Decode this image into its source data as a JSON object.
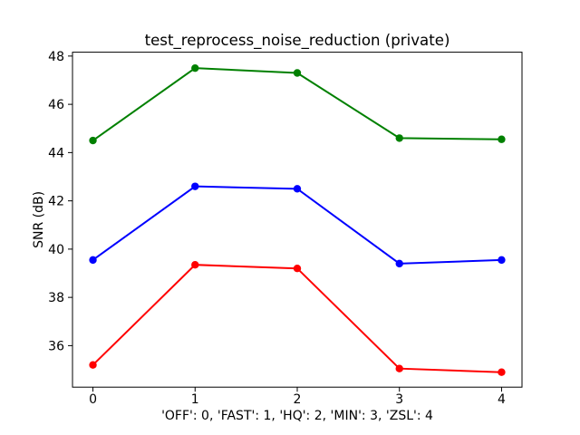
{
  "chart_data": {
    "type": "line",
    "title": "test_reprocess_noise_reduction (private)",
    "xlabel": "'OFF': 0, 'FAST': 1, 'HQ': 2, 'MIN': 3, 'ZSL': 4",
    "ylabel": "SNR (dB)",
    "x": [
      0,
      1,
      2,
      3,
      4
    ],
    "x_tick_labels": [
      "0",
      "1",
      "2",
      "3",
      "4"
    ],
    "y_tick_labels": [
      "36",
      "38",
      "40",
      "42",
      "44",
      "46",
      "48"
    ],
    "xticks": [
      0,
      1,
      2,
      3,
      4
    ],
    "yticks": [
      36,
      38,
      40,
      42,
      44,
      46,
      48
    ],
    "xlim": [
      -0.2,
      4.2
    ],
    "ylim": [
      34.28,
      48.16
    ],
    "grid": false,
    "legend": false,
    "marker": "circle",
    "series": [
      {
        "name": "red",
        "color": "#ff0000",
        "values": [
          35.2,
          39.35,
          39.2,
          35.05,
          34.9
        ]
      },
      {
        "name": "blue",
        "color": "#0000ff",
        "values": [
          39.55,
          42.6,
          42.5,
          39.4,
          39.55
        ]
      },
      {
        "name": "green",
        "color": "#008000",
        "values": [
          44.5,
          47.5,
          47.3,
          44.6,
          44.55
        ]
      }
    ]
  }
}
